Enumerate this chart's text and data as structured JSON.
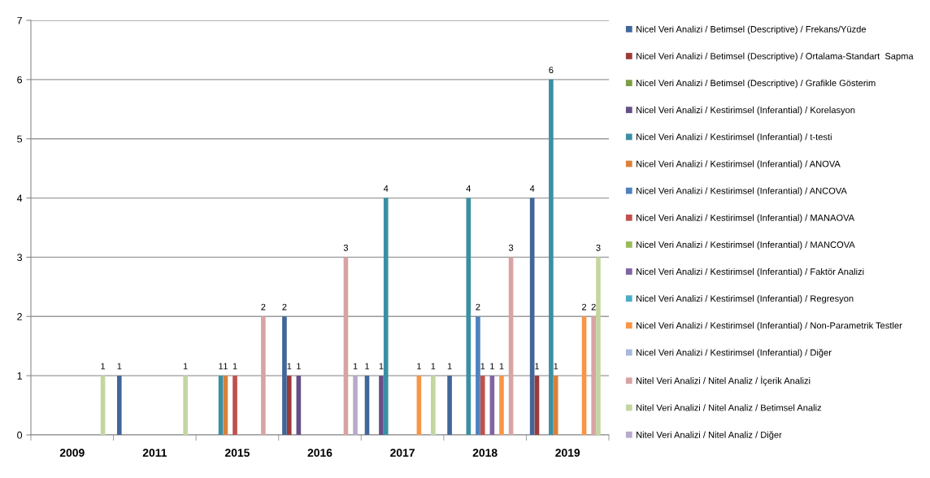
{
  "chart_data": {
    "type": "bar",
    "categories": [
      "2009",
      "2011",
      "2015",
      "2016",
      "2017",
      "2018",
      "2019"
    ],
    "series": [
      {
        "name": "Nicel Veri Analizi / Betimsel (Descriptive) / Frekans/Yüzde",
        "color": "#41669a",
        "values": [
          null,
          1,
          null,
          2,
          1,
          1,
          4
        ]
      },
      {
        "name": "Nicel Veri Analizi / Betimsel (Descriptive) / Ortalama-Standart  Sapma",
        "color": "#9b3b39",
        "values": [
          null,
          null,
          null,
          1,
          null,
          null,
          1
        ]
      },
      {
        "name": "Nicel Veri Analizi / Betimsel (Descriptive) / Grafikle Gösterim",
        "color": "#7e9c45",
        "values": [
          null,
          null,
          null,
          null,
          null,
          null,
          null
        ]
      },
      {
        "name": "Nicel Veri Analizi / Kestirimsel (Inferantial) / Korelasyon",
        "color": "#664f86",
        "values": [
          null,
          null,
          null,
          1,
          1,
          null,
          null
        ]
      },
      {
        "name": "Nicel Veri Analizi / Kestirimsel (Inferantial) / t-testi",
        "color": "#3b8fa3",
        "values": [
          null,
          null,
          1,
          null,
          4,
          4,
          6
        ]
      },
      {
        "name": "Nicel Veri Analizi / Kestirimsel (Inferantial) / ANOVA",
        "color": "#d9803a",
        "values": [
          null,
          null,
          1,
          null,
          null,
          null,
          1
        ]
      },
      {
        "name": "Nicel Veri Analizi / Kestirimsel (Inferantial) / ANCOVA",
        "color": "#4f81bd",
        "values": [
          null,
          null,
          null,
          null,
          null,
          2,
          null
        ]
      },
      {
        "name": "Nicel Veri Analizi / Kestirimsel (Inferantial) / MANAOVA",
        "color": "#c0504d",
        "values": [
          null,
          null,
          1,
          null,
          null,
          1,
          null
        ]
      },
      {
        "name": "Nicel Veri Analizi / Kestirimsel (Inferantial) / MANCOVA",
        "color": "#9bbb59",
        "values": [
          null,
          null,
          null,
          null,
          null,
          null,
          null
        ]
      },
      {
        "name": "Nicel Veri Analizi / Kestirimsel (Inferantial) / Faktör Analizi",
        "color": "#8064a2",
        "values": [
          null,
          null,
          null,
          null,
          null,
          1,
          null
        ]
      },
      {
        "name": "Nicel Veri Analizi / Kestirimsel (Inferantial) / Regresyon",
        "color": "#4bacc6",
        "values": [
          null,
          null,
          null,
          null,
          null,
          null,
          null
        ]
      },
      {
        "name": "Nicel Veri Analizi / Kestirimsel (Inferantial) / Non-Parametrik Testler",
        "color": "#f79646",
        "values": [
          null,
          null,
          null,
          null,
          1,
          1,
          2
        ]
      },
      {
        "name": "Nicel Veri Analizi / Kestirimsel (Inferantial) / Diğer",
        "color": "#a7b9dc",
        "values": [
          null,
          null,
          null,
          null,
          null,
          null,
          null
        ]
      },
      {
        "name": "Nitel Veri Analizi / Nitel Analiz / İçerik Analizi",
        "color": "#d9a3a3",
        "values": [
          null,
          null,
          2,
          3,
          null,
          3,
          2
        ]
      },
      {
        "name": "Nitel Veri Analizi / Nitel Analiz / Betimsel Analiz",
        "color": "#c4d6a0",
        "values": [
          1,
          1,
          null,
          null,
          1,
          null,
          3
        ]
      },
      {
        "name": "Nitel Veri Analizi / Nitel Analiz / Diğer",
        "color": "#b8aacb",
        "values": [
          null,
          null,
          null,
          1,
          null,
          null,
          null
        ]
      }
    ],
    "ylim": [
      0,
      7
    ],
    "yticks": [
      0,
      1,
      2,
      3,
      4,
      5,
      6,
      7
    ],
    "grid": "y",
    "legend": "right",
    "data_labels": true
  }
}
